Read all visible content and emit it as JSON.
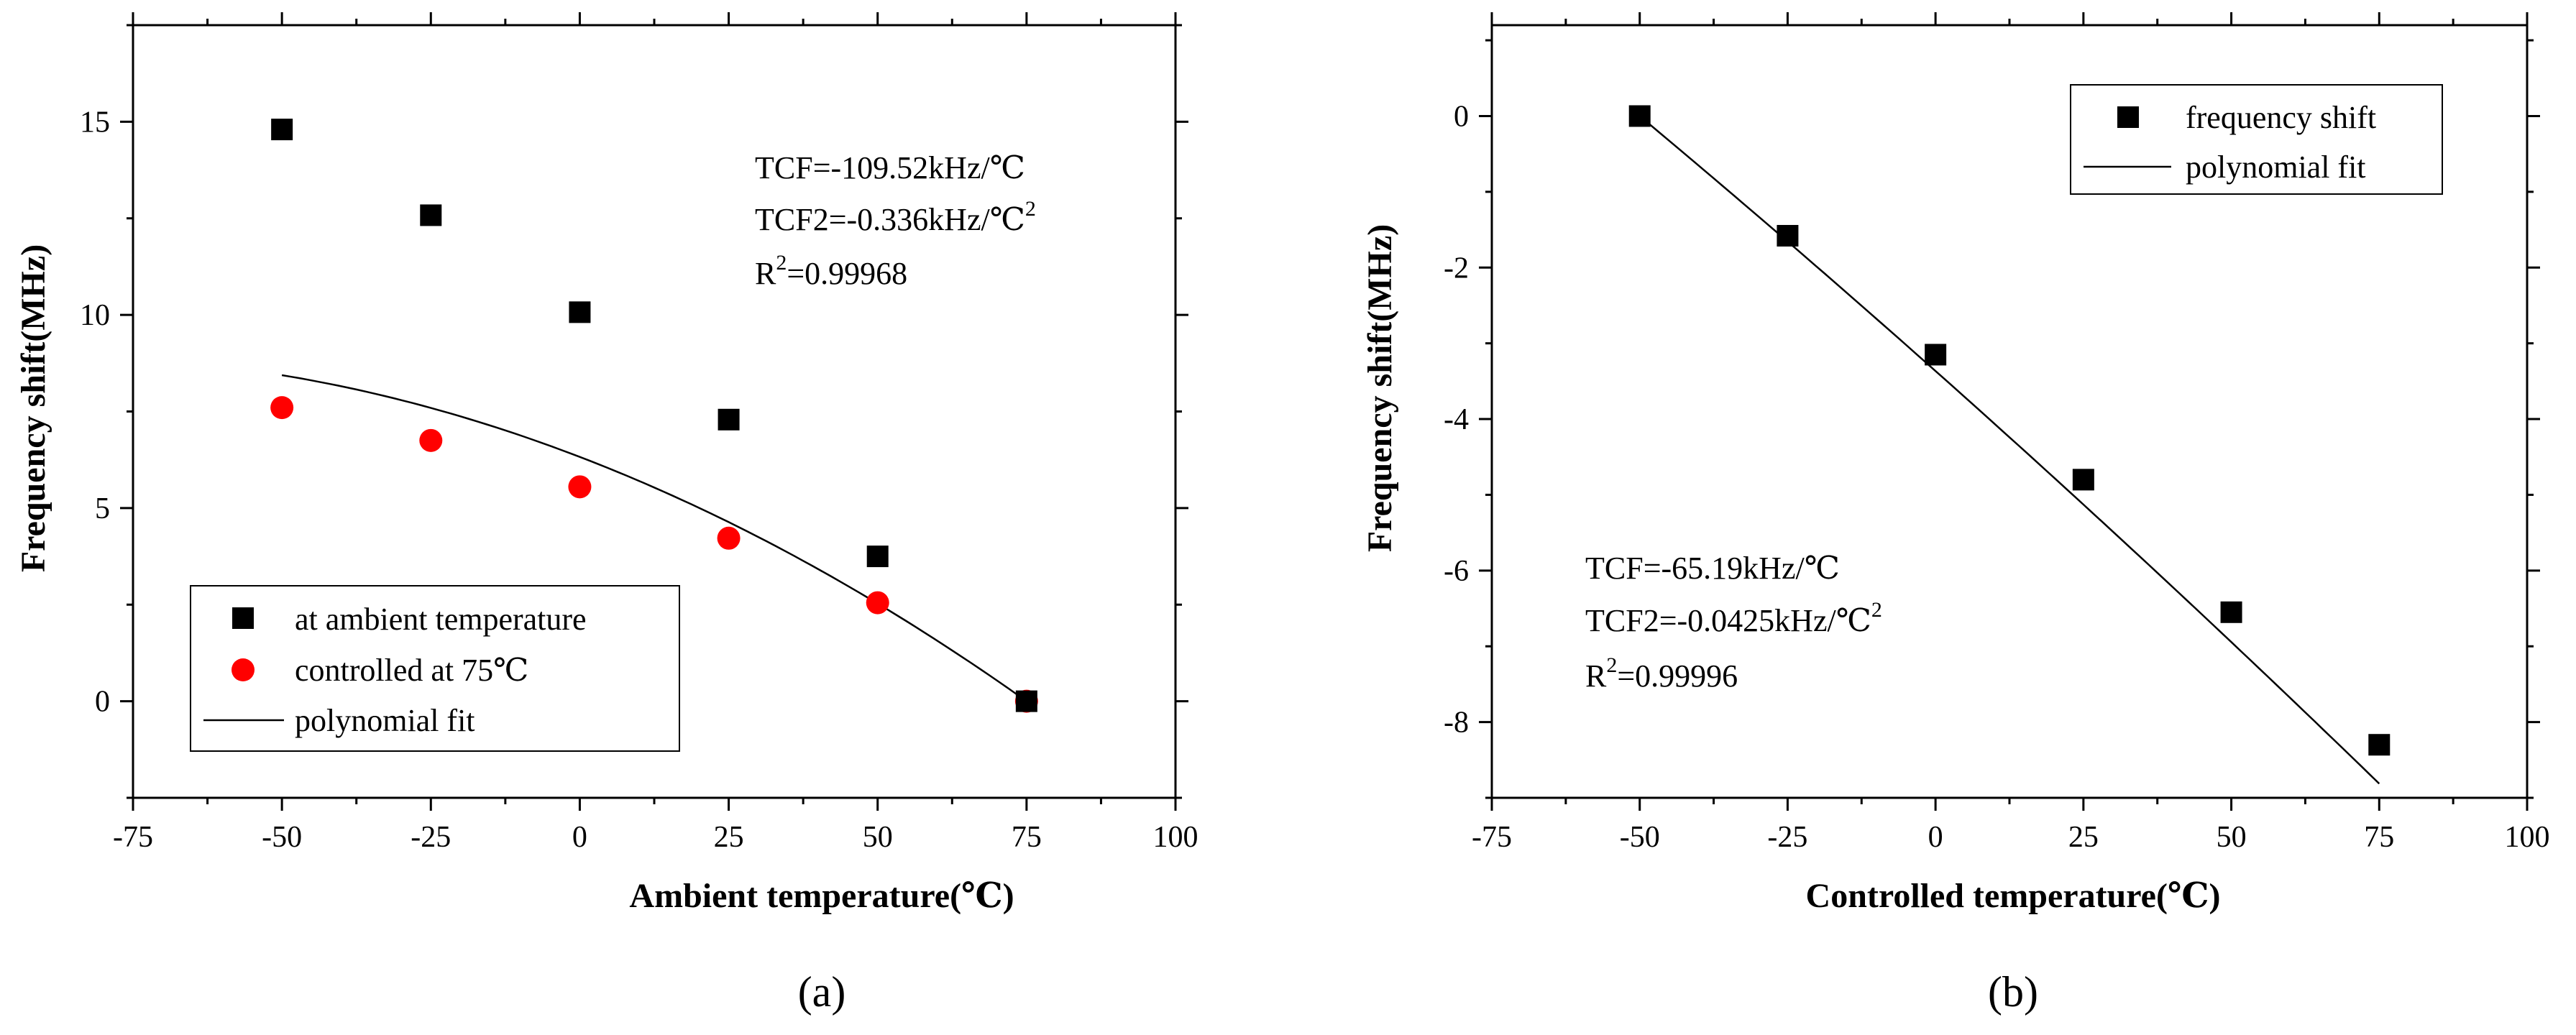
{
  "chart_data": [
    {
      "type": "scatter",
      "panel_label": "(a)",
      "xlabel": "Ambient temperature(℃)",
      "ylabel": "Frequency shift(MHz)",
      "xlim": [
        -75,
        100
      ],
      "ylim": [
        -2.5,
        17.5
      ],
      "xticks": [
        -75,
        -50,
        -25,
        0,
        25,
        50,
        75,
        100
      ],
      "yticks": [
        0,
        5,
        10,
        15
      ],
      "series": [
        {
          "name": "at ambient temperature",
          "marker": "square",
          "color": "#000000",
          "x": [
            -50,
            -25,
            0,
            25,
            50,
            75
          ],
          "y": [
            14.8,
            12.58,
            10.07,
            7.29,
            3.75,
            0
          ]
        },
        {
          "name": "controlled at 75℃",
          "marker": "circle",
          "color": "#ff0000",
          "x": [
            -50,
            -25,
            0,
            25,
            50,
            75
          ],
          "y": [
            7.6,
            6.75,
            5.55,
            4.22,
            2.55,
            0
          ]
        },
        {
          "name": "polynomial fit",
          "marker": "line",
          "color": "#000000",
          "fit": "quadratic",
          "x_range": [
            -50,
            75
          ],
          "anchor_x": 75,
          "anchor_y": 0,
          "TCF_kHz_per_C": -109.52,
          "TCF2_kHz_per_C2": -0.336
        }
      ],
      "annotations": {
        "tcf": "TCF=-109.52kHz/℃",
        "tcf2": "TCF2=-0.336kHz/℃",
        "tcf2_sup": "2",
        "r2_prefix": "R",
        "r2_sup": "2",
        "r2_value": "=0.99968"
      },
      "legend": {
        "position": "lower-left",
        "entries": [
          "at ambient temperature",
          "controlled at 75℃",
          "polynomial fit"
        ]
      }
    },
    {
      "type": "scatter",
      "panel_label": "(b)",
      "xlabel": "Controlled temperature(℃)",
      "ylabel": "Frequency shift(MHz)",
      "xlim": [
        -75,
        100
      ],
      "ylim": [
        -9,
        1.2
      ],
      "xticks": [
        -75,
        -50,
        -25,
        0,
        25,
        50,
        75,
        100
      ],
      "yticks": [
        0,
        -2,
        -4,
        -6,
        -8
      ],
      "series": [
        {
          "name": "frequency shift",
          "marker": "square",
          "color": "#000000",
          "x": [
            -50,
            -25,
            0,
            25,
            50,
            75
          ],
          "y": [
            0,
            -1.58,
            -3.15,
            -4.8,
            -6.55,
            -8.3
          ]
        },
        {
          "name": "polynomial fit",
          "marker": "line",
          "color": "#000000",
          "fit": "quadratic",
          "x_range": [
            -50,
            75
          ],
          "anchor_x": -50,
          "anchor_y": 0,
          "TCF_kHz_per_C": -65.19,
          "TCF2_kHz_per_C2": -0.0425
        }
      ],
      "annotations": {
        "tcf": "TCF=-65.19kHz/℃",
        "tcf2": "TCF2=-0.0425kHz/℃",
        "tcf2_sup": "2",
        "r2_prefix": "R",
        "r2_sup": "2",
        "r2_value": "=0.99996"
      },
      "legend": {
        "position": "top-right",
        "entries": [
          "frequency shift",
          "polynomial fit"
        ]
      }
    }
  ]
}
